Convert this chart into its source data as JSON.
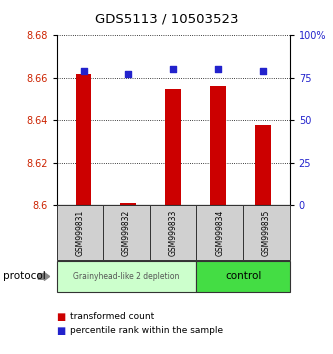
{
  "title": "GDS5113 / 10503523",
  "samples": [
    "GSM999831",
    "GSM999832",
    "GSM999833",
    "GSM999834",
    "GSM999835"
  ],
  "bar_values": [
    8.662,
    8.601,
    8.655,
    8.656,
    8.638
  ],
  "percentile_values": [
    79,
    77,
    80,
    80,
    79
  ],
  "bar_bottom": 8.6,
  "ylim": [
    8.6,
    8.68
  ],
  "y2lim": [
    0,
    100
  ],
  "yticks": [
    8.6,
    8.62,
    8.64,
    8.66,
    8.68
  ],
  "y2ticks": [
    0,
    25,
    50,
    75,
    100
  ],
  "y2ticklabels": [
    "0",
    "25",
    "50",
    "75",
    "100%"
  ],
  "bar_color": "#cc0000",
  "percentile_color": "#2222cc",
  "group1_label": "Grainyhead-like 2 depletion",
  "group2_label": "control",
  "group1_color": "#ccffcc",
  "group2_color": "#44dd44",
  "protocol_label": "protocol",
  "legend_bar_label": "transformed count",
  "legend_pct_label": "percentile rank within the sample",
  "tick_label_color_left": "#cc2200",
  "tick_label_color_right": "#2222cc",
  "bar_width": 0.35
}
